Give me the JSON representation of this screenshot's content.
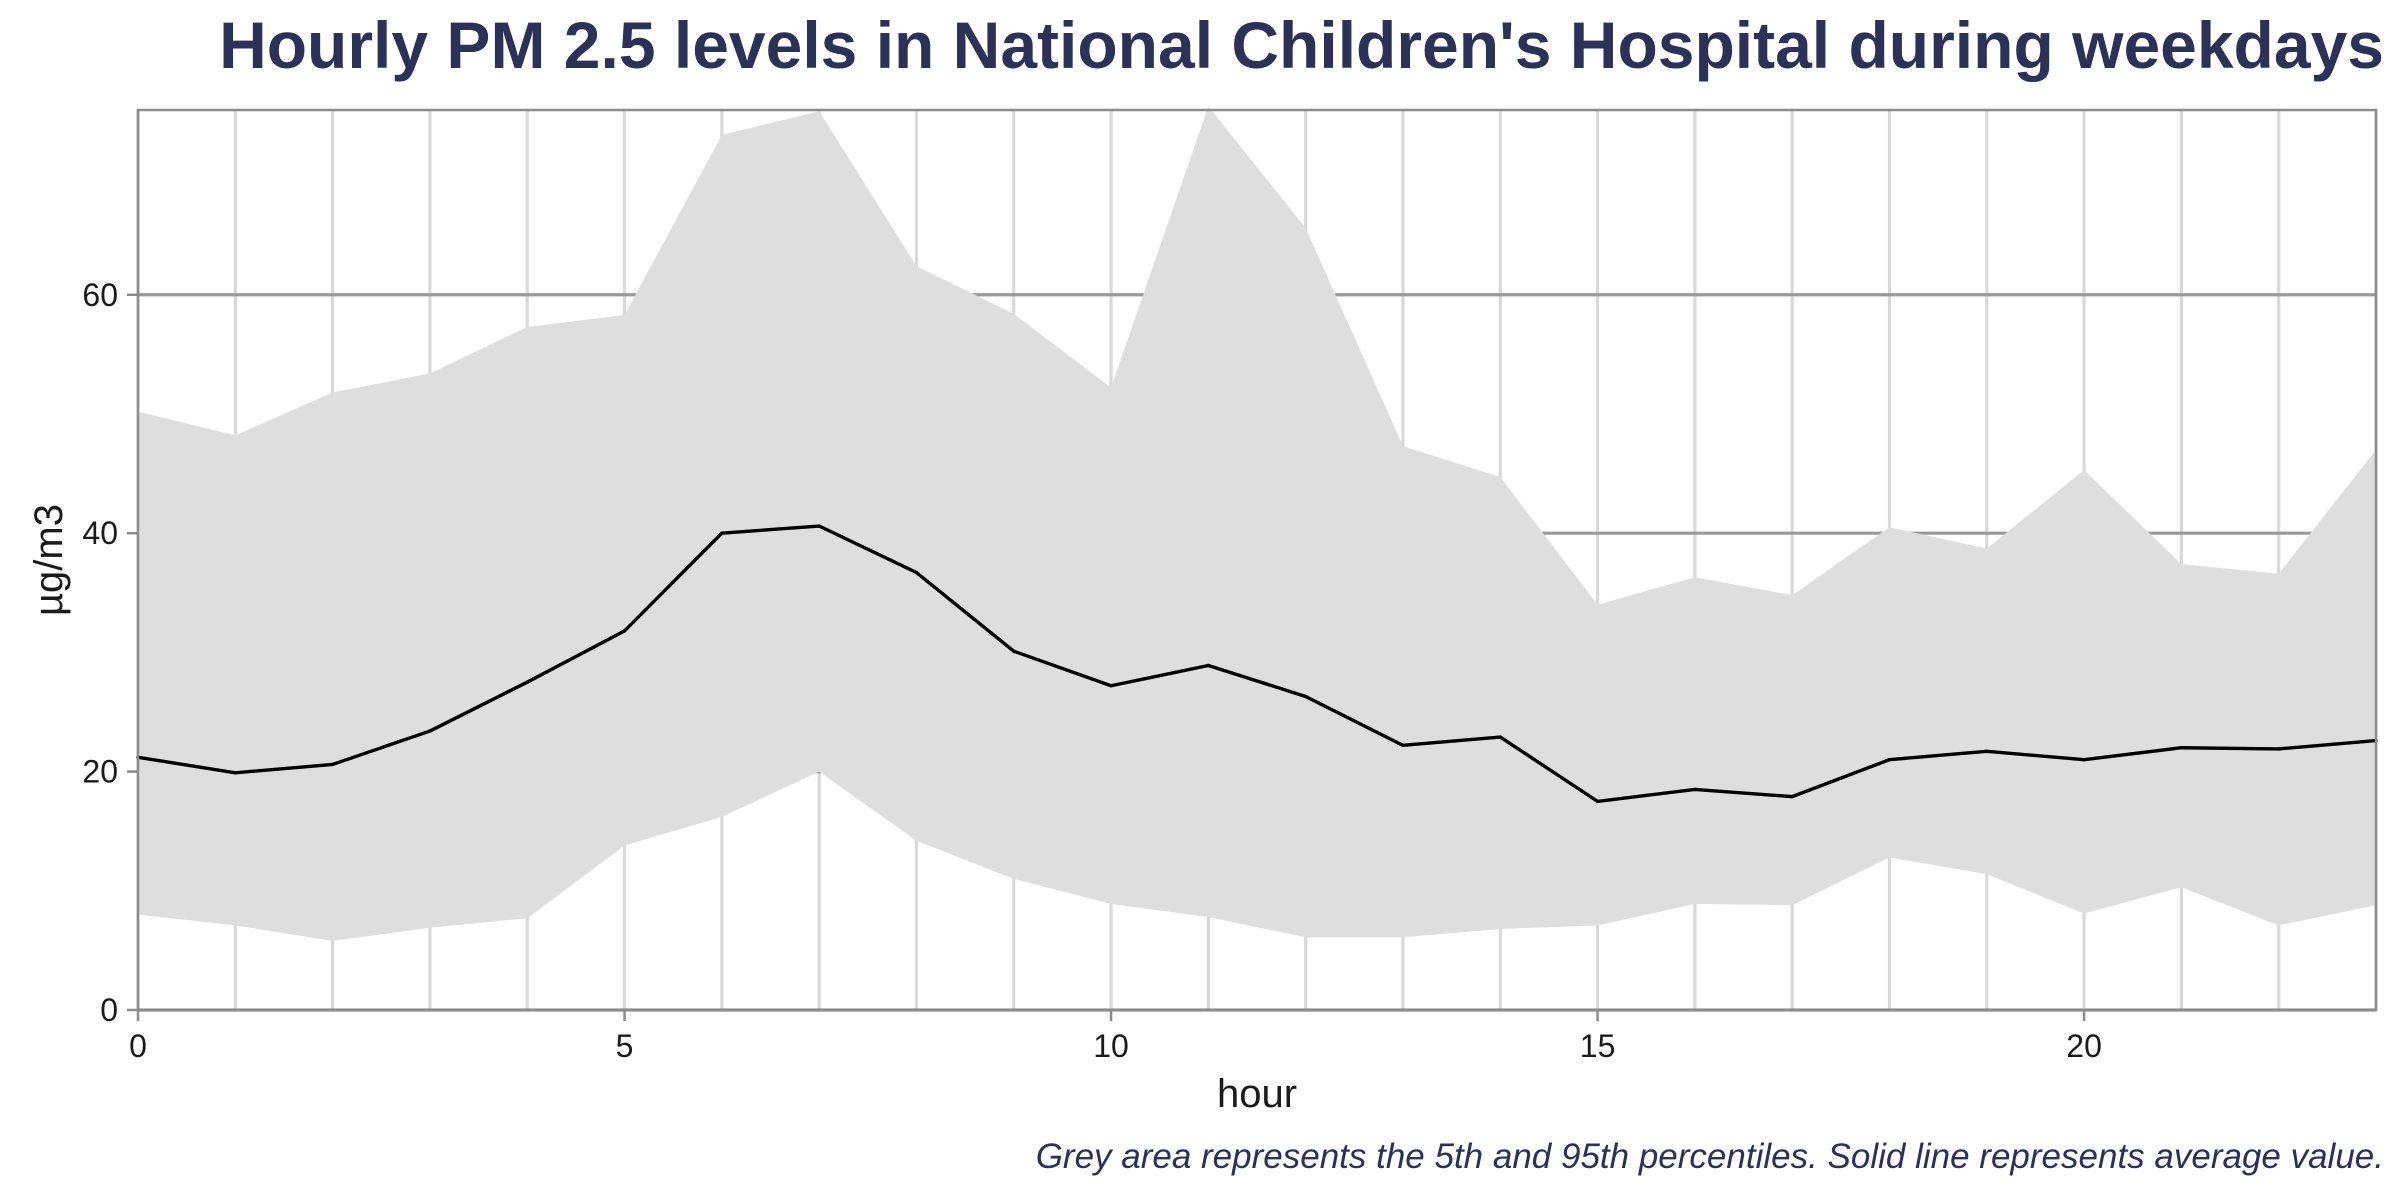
{
  "colors": {
    "title": "#2b3157",
    "band": "#dedede",
    "line": "#000000",
    "vgrid": "#d9d9d9",
    "hgrid": "#9a9a9a",
    "axis": "#8c8c8c"
  },
  "chart_data": {
    "type": "area",
    "title": "Hourly PM 2.5 levels in National Children's Hospital during weekdays",
    "xlabel": "hour",
    "ylabel": "µg/m3",
    "caption": "Grey area represents the 5th and 95th percentiles. Solid line represents average value.",
    "xlim": [
      0,
      23
    ],
    "ylim": [
      0,
      75.5
    ],
    "x_ticks": [
      0,
      5,
      10,
      15,
      20
    ],
    "y_ticks": [
      0,
      20,
      40,
      60
    ],
    "grid": true,
    "x": [
      0,
      1,
      2,
      3,
      4,
      5,
      6,
      7,
      8,
      9,
      10,
      11,
      12,
      13,
      14,
      15,
      16,
      17,
      18,
      19,
      20,
      21,
      22,
      23
    ],
    "series": [
      {
        "name": "5th percentile",
        "values": [
          8.0,
          7.1,
          5.8,
          6.9,
          7.7,
          13.8,
          16.2,
          20.0,
          14.2,
          11.0,
          8.9,
          7.8,
          6.1,
          6.1,
          6.8,
          7.1,
          8.9,
          8.8,
          12.8,
          11.4,
          8.1,
          10.3,
          7.1,
          8.8
        ]
      },
      {
        "name": "95th percentile",
        "values": [
          50.2,
          48.2,
          51.8,
          53.4,
          57.3,
          58.3,
          73.4,
          75.4,
          62.4,
          58.4,
          52.2,
          75.8,
          65.6,
          47.3,
          44.7,
          34.0,
          36.3,
          34.8,
          40.5,
          38.7,
          45.3,
          37.4,
          36.6,
          47.0
        ]
      },
      {
        "name": "average",
        "values": [
          21.2,
          19.9,
          20.6,
          23.4,
          27.5,
          31.8,
          40.0,
          40.6,
          36.7,
          30.1,
          27.2,
          28.9,
          26.3,
          22.2,
          22.9,
          17.5,
          18.5,
          17.9,
          21.0,
          21.7,
          21.0,
          22.0,
          21.9,
          22.6
        ]
      }
    ]
  }
}
